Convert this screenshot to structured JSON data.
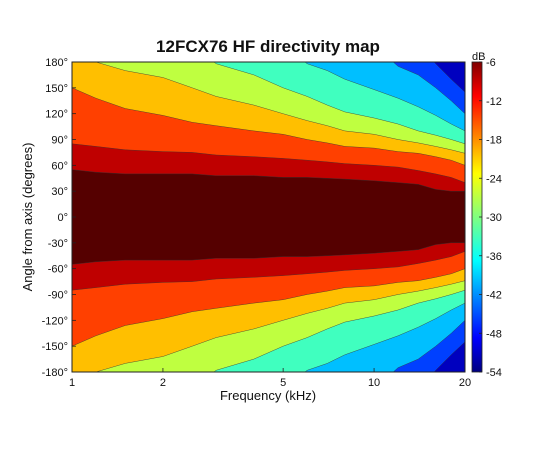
{
  "chart_data": {
    "type": "heatmap",
    "title": "12FCX76 HF directivity map",
    "xlabel": "Frequency (kHz)",
    "ylabel": "Angle from axis (degrees)",
    "x_scale": "log",
    "xlim": [
      1,
      20
    ],
    "ylim": [
      -180,
      180
    ],
    "x_ticks": [
      1,
      2,
      5,
      10,
      20
    ],
    "x_tick_labels": [
      "1",
      "2",
      "5",
      "10",
      "20"
    ],
    "y_ticks": [
      180,
      150,
      120,
      90,
      60,
      30,
      0,
      -30,
      -60,
      -90,
      -120,
      -150,
      -180
    ],
    "y_tick_labels": [
      "180°",
      "150°",
      "120°",
      "90°",
      "60°",
      "30°",
      "0°",
      "-30°",
      "-60°",
      "-90°",
      "-120°",
      "-150°",
      "-180°"
    ],
    "colorbar": {
      "unit": "dB",
      "range": [
        -54,
        -6
      ],
      "ticks": [
        -6,
        -12,
        -18,
        -24,
        -30,
        -36,
        -42,
        -48,
        -54
      ],
      "tick_labels": [
        "-6",
        "-12",
        "-18",
        "-24",
        "-30",
        "-36",
        "-42",
        "-48",
        "-54"
      ],
      "colormap": "jet"
    },
    "levels_db": [
      -6,
      -12,
      -18,
      -24,
      -30,
      -36,
      -42,
      -48,
      -54
    ],
    "contour_boundaries_deg": {
      "x_khz": [
        1,
        1.2,
        1.5,
        2,
        2.5,
        3,
        4,
        5,
        6,
        7,
        8,
        10,
        12,
        14,
        16,
        18,
        20
      ],
      "minus_6dB": [
        55,
        52,
        50,
        50,
        50,
        48,
        48,
        46,
        46,
        45,
        44,
        42,
        40,
        38,
        32,
        30,
        30
      ],
      "minus_12dB": [
        85,
        82,
        78,
        76,
        75,
        72,
        70,
        68,
        66,
        64,
        62,
        60,
        58,
        54,
        50,
        46,
        40
      ],
      "minus_18dB": [
        150,
        138,
        126,
        118,
        110,
        106,
        100,
        96,
        90,
        86,
        82,
        80,
        76,
        74,
        70,
        66,
        60
      ],
      "minus_24dB": [
        180,
        180,
        170,
        162,
        150,
        140,
        130,
        120,
        112,
        106,
        100,
        96,
        90,
        86,
        82,
        78,
        74
      ],
      "minus_30dB": [
        999,
        999,
        999,
        999,
        999,
        178,
        165,
        150,
        140,
        130,
        122,
        115,
        108,
        100,
        95,
        90,
        85
      ],
      "minus_36dB": [
        999,
        999,
        999,
        999,
        999,
        999,
        999,
        999,
        178,
        170,
        160,
        148,
        138,
        128,
        118,
        108,
        100
      ],
      "minus_42dB": [
        999,
        999,
        999,
        999,
        999,
        999,
        999,
        999,
        999,
        999,
        999,
        999,
        175,
        165,
        150,
        135,
        120
      ],
      "minus_48dB": [
        999,
        999,
        999,
        999,
        999,
        999,
        999,
        999,
        999,
        999,
        999,
        999,
        999,
        999,
        178,
        160,
        145
      ]
    },
    "grid": false
  }
}
